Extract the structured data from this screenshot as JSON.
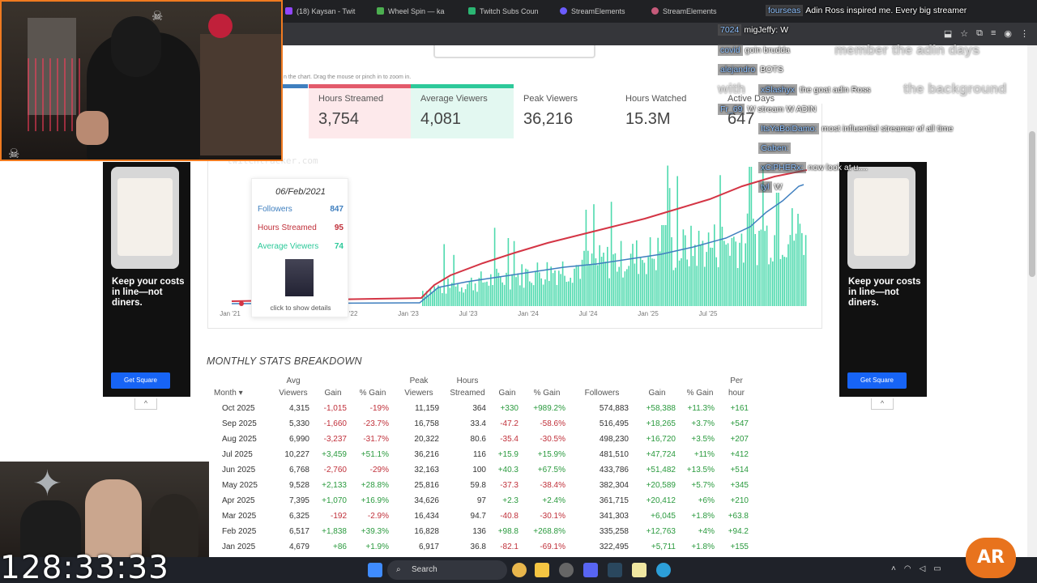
{
  "browser": {
    "tabs": [
      {
        "label": "(18) Kaysan - Twit",
        "color": "#9146ff"
      },
      {
        "label": "Wheel Spin — ka",
        "color": "#4caf50"
      },
      {
        "label": "Twitch Subs Coun",
        "color": "#2bb673"
      },
      {
        "label": "StreamElements",
        "color": "#6b5cff"
      },
      {
        "label": "StreamElements",
        "color": "#c65a7a"
      }
    ]
  },
  "page": {
    "zoom_hint": "n the chart. Drag the mouse or pinch in to zoom in.",
    "watermark": "twitchtracker.com"
  },
  "stats": [
    {
      "label": "Hours Streamed",
      "value": "3,754",
      "color": "#e35a6b"
    },
    {
      "label": "Average Viewers",
      "value": "4,081",
      "color": "#2dc99a"
    },
    {
      "label": "Peak Viewers",
      "value": "36,216",
      "color": ""
    },
    {
      "label": "Hours Watched",
      "value": "15.3M",
      "color": ""
    },
    {
      "label": "Active Days",
      "value": "647",
      "color": ""
    }
  ],
  "chart_data": {
    "type": "line",
    "x_ticks": [
      "Jan '21",
      "Jul '22",
      "Jan '23",
      "Jul '23",
      "Jan '24",
      "Jul '24",
      "Jan '25",
      "Jul '25"
    ],
    "series": [
      {
        "name": "Followers",
        "color": "#3f7fbf"
      },
      {
        "name": "Hours Streamed",
        "color": "#d43545"
      },
      {
        "name": "Average Viewers",
        "color": "#2fd4a0"
      }
    ],
    "tooltip": {
      "date": "06/Feb/2021",
      "rows": [
        {
          "label": "Followers",
          "value": "847",
          "color": "#3f7fbf"
        },
        {
          "label": "Hours Streamed",
          "value": "95",
          "color": "#c0303a"
        },
        {
          "label": "Average Viewers",
          "value": "74",
          "color": "#2dc99a"
        }
      ],
      "click": "click to show details"
    }
  },
  "table": {
    "title": "MONTHLY STATS BREAKDOWN",
    "headers": [
      {
        "top": "",
        "bottom": "Month ▾"
      },
      {
        "top": "Avg",
        "bottom": "Viewers"
      },
      {
        "top": "",
        "bottom": "Gain"
      },
      {
        "top": "",
        "bottom": "% Gain"
      },
      {
        "top": "Peak",
        "bottom": "Viewers"
      },
      {
        "top": "Hours",
        "bottom": "Streamed"
      },
      {
        "top": "",
        "bottom": "Gain"
      },
      {
        "top": "",
        "bottom": "% Gain"
      },
      {
        "top": "",
        "bottom": "Followers"
      },
      {
        "top": "",
        "bottom": "Gain"
      },
      {
        "top": "",
        "bottom": "% Gain"
      },
      {
        "top": "Per",
        "bottom": "hour"
      }
    ],
    "rows": [
      [
        "Oct 2025",
        "4,315",
        "-1,015",
        "-19%",
        "11,159",
        "364",
        "+330",
        "+989.2%",
        "574,883",
        "+58,388",
        "+11.3%",
        "+161"
      ],
      [
        "Sep 2025",
        "5,330",
        "-1,660",
        "-23.7%",
        "16,758",
        "33.4",
        "-47.2",
        "-58.6%",
        "516,495",
        "+18,265",
        "+3.7%",
        "+547"
      ],
      [
        "Aug 2025",
        "6,990",
        "-3,237",
        "-31.7%",
        "20,322",
        "80.6",
        "-35.4",
        "-30.5%",
        "498,230",
        "+16,720",
        "+3.5%",
        "+207"
      ],
      [
        "Jul 2025",
        "10,227",
        "+3,459",
        "+51.1%",
        "36,216",
        "116",
        "+15.9",
        "+15.9%",
        "481,510",
        "+47,724",
        "+11%",
        "+412"
      ],
      [
        "Jun 2025",
        "6,768",
        "-2,760",
        "-29%",
        "32,163",
        "100",
        "+40.3",
        "+67.5%",
        "433,786",
        "+51,482",
        "+13.5%",
        "+514"
      ],
      [
        "May 2025",
        "9,528",
        "+2,133",
        "+28.8%",
        "25,816",
        "59.8",
        "-37.3",
        "-38.4%",
        "382,304",
        "+20,589",
        "+5.7%",
        "+345"
      ],
      [
        "Apr 2025",
        "7,395",
        "+1,070",
        "+16.9%",
        "34,626",
        "97",
        "+2.3",
        "+2.4%",
        "361,715",
        "+20,412",
        "+6%",
        "+210"
      ],
      [
        "Mar 2025",
        "6,325",
        "-192",
        "-2.9%",
        "16,434",
        "94.7",
        "-40.8",
        "-30.1%",
        "341,303",
        "+6,045",
        "+1.8%",
        "+63.8"
      ],
      [
        "Feb 2025",
        "6,517",
        "+1,838",
        "+39.3%",
        "16,828",
        "136",
        "+98.8",
        "+268.8%",
        "335,258",
        "+12,763",
        "+4%",
        "+94.2"
      ],
      [
        "Jan 2025",
        "4,679",
        "+86",
        "+1.9%",
        "6,917",
        "36.8",
        "-82.1",
        "-69.1%",
        "322,495",
        "+5,711",
        "+1.8%",
        "+155"
      ]
    ]
  },
  "ads": {
    "text": "Keep your costs in line—not diners.",
    "button": "Get Square"
  },
  "chat": {
    "lines": [
      {
        "user": "fourseas",
        "text": "Adin Ross inspired me. Every big streamer"
      },
      {
        "user": "7024",
        "text": "migJeffy: W"
      },
      {
        "user": "covid",
        "text": "goin brudda"
      },
      {
        "user": "alejandro",
        "text": "BOTS"
      },
      {
        "user": "xSlashyx",
        "text": "the goat adin Ross"
      },
      {
        "user": "Fr_69",
        "text": "W stream W ADIN"
      },
      {
        "user": "ItsYaBoiDamo:",
        "text": "most influential streamer of all time"
      },
      {
        "user": "Gaben:",
        "text": ""
      },
      {
        "user": "xCiPHERx:",
        "text": "now look at u...."
      },
      {
        "user": "tyl",
        "text": "W"
      }
    ],
    "big_lines": [
      "member the adin days",
      "with",
      "the background"
    ]
  },
  "stream": {
    "timer": "128:33:33",
    "logo": "AR"
  },
  "taskbar": {
    "search": "Search"
  }
}
